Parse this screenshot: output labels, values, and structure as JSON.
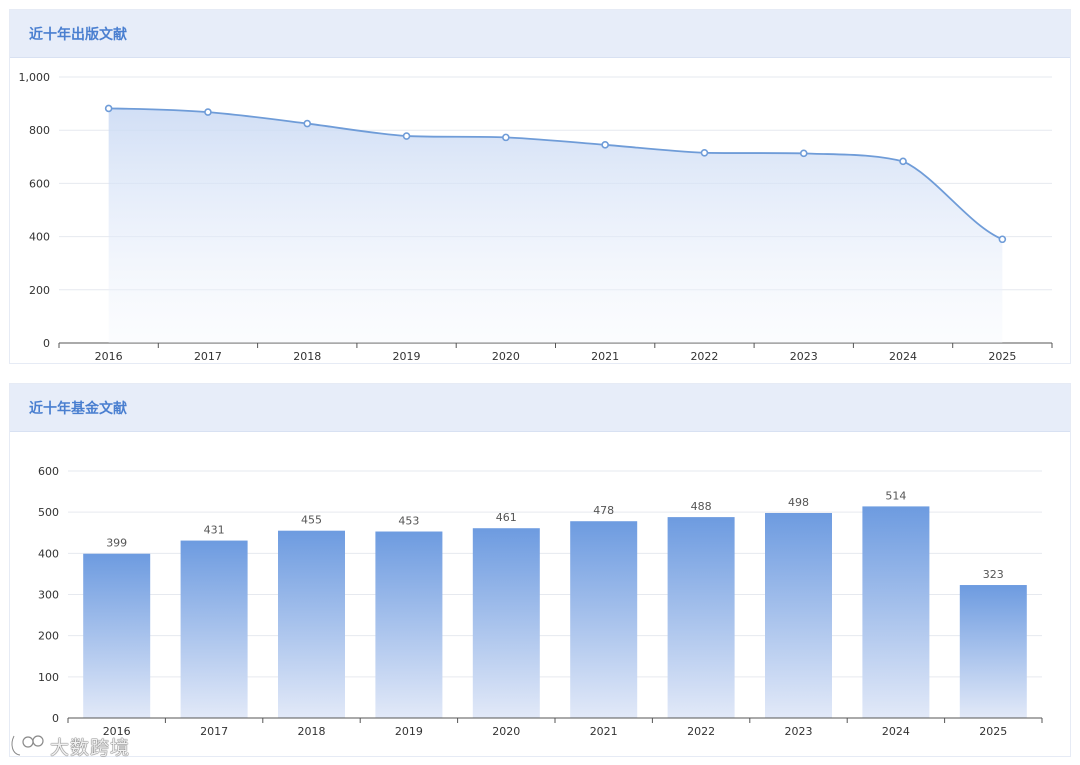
{
  "panels": {
    "publications": {
      "title": "近十年出版文献"
    },
    "funded": {
      "title": "近十年基金文献"
    }
  },
  "chart_data": [
    {
      "type": "area",
      "title": "近十年出版文献",
      "xlabel": "",
      "ylabel": "",
      "x": [
        "2016",
        "2017",
        "2018",
        "2019",
        "2020",
        "2021",
        "2022",
        "2023",
        "2024",
        "2025"
      ],
      "values": [
        882,
        868,
        825,
        778,
        773,
        745,
        715,
        713,
        683,
        390
      ],
      "ylim": [
        0,
        1000
      ],
      "yticks": [
        "0",
        "200",
        "400",
        "600",
        "800",
        "1,000"
      ],
      "grid": true,
      "smooth": true,
      "color": "#6f9cd8"
    },
    {
      "type": "bar",
      "title": "近十年基金文献",
      "xlabel": "",
      "ylabel": "",
      "categories": [
        "2016",
        "2017",
        "2018",
        "2019",
        "2020",
        "2021",
        "2022",
        "2023",
        "2024",
        "2025"
      ],
      "values": [
        399,
        431,
        455,
        453,
        461,
        478,
        488,
        498,
        514,
        323
      ],
      "data_labels": [
        "399",
        "431",
        "455",
        "453",
        "461",
        "478",
        "488",
        "498",
        "514",
        "323"
      ],
      "ylim": [
        0,
        600
      ],
      "yticks": [
        "0",
        "100",
        "200",
        "300",
        "400",
        "500",
        "600"
      ],
      "grid": true,
      "color_top": "#6d9be0",
      "color_bottom": "#e2e9f8"
    }
  ],
  "watermark": {
    "text": "大数跨境",
    "icon": "brand-logo-icon"
  }
}
